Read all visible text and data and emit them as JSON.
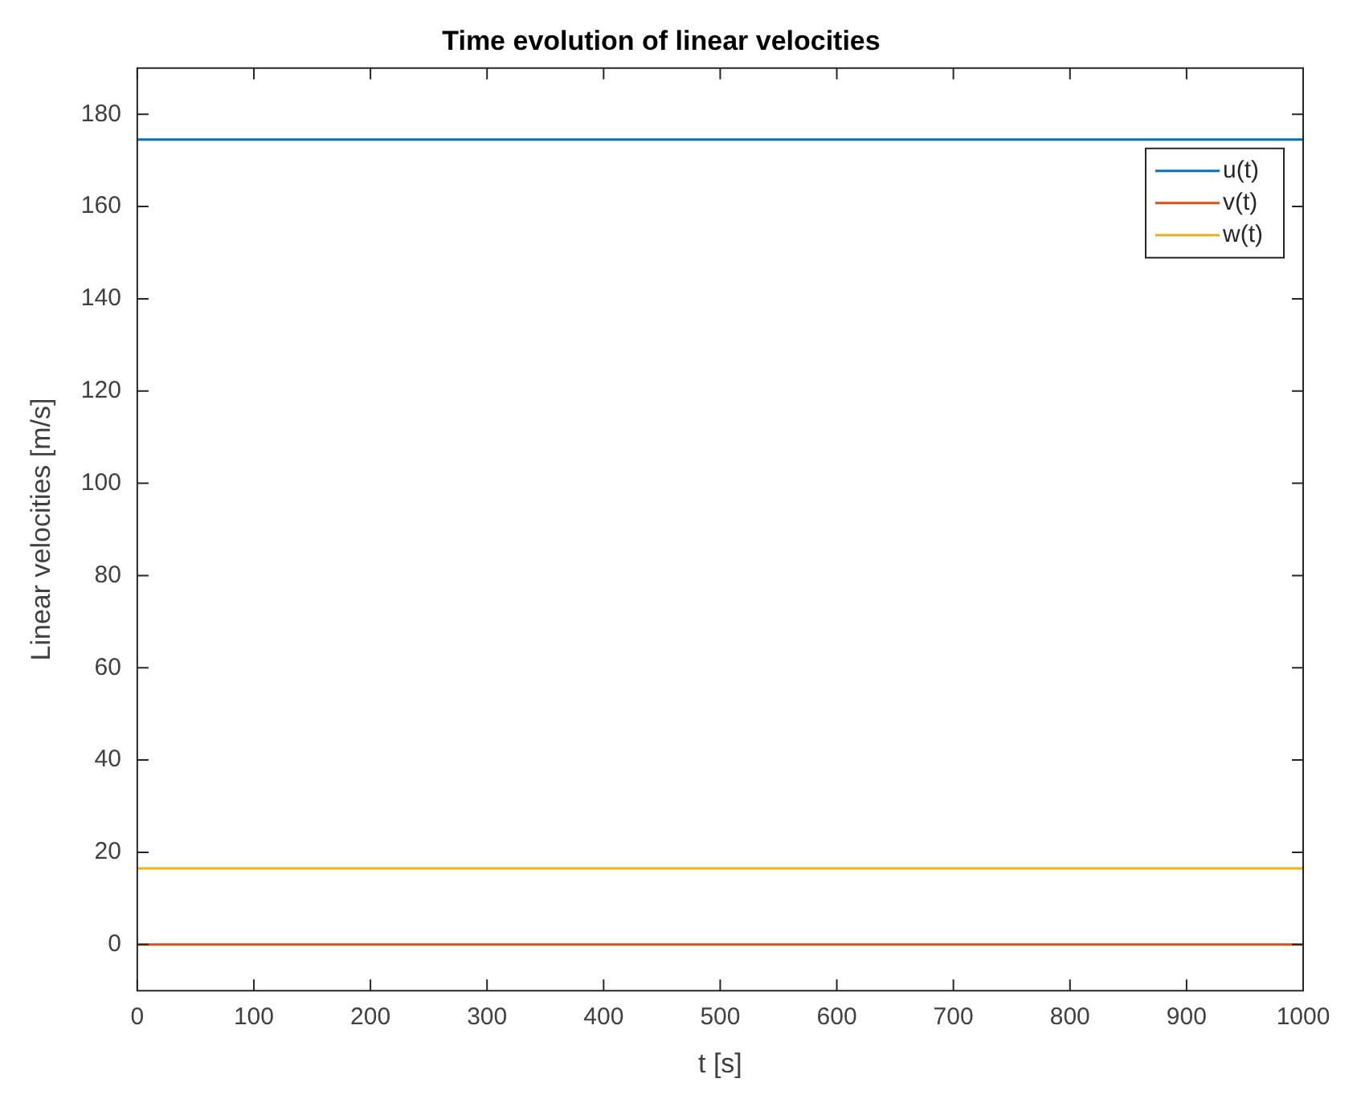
{
  "chart_data": {
    "type": "line",
    "title": "Time evolution of linear velocities",
    "xlabel": "t [s]",
    "ylabel": "Linear velocities [m/s]",
    "x": [
      0,
      1000
    ],
    "series": [
      {
        "name": "u(t)",
        "color": "#0072bd",
        "values": [
          174.5,
          174.5
        ]
      },
      {
        "name": "v(t)",
        "color": "#d95319",
        "values": [
          0,
          0
        ]
      },
      {
        "name": "w(t)",
        "color": "#edb120",
        "values": [
          16.5,
          16.5
        ]
      }
    ],
    "xlim": [
      0,
      1000
    ],
    "xticks": [
      0,
      100,
      200,
      300,
      400,
      500,
      600,
      700,
      800,
      900,
      1000
    ],
    "ylim": [
      -10,
      190
    ],
    "yticks": [
      0,
      20,
      40,
      60,
      80,
      100,
      120,
      140,
      160,
      180
    ],
    "grid": false,
    "legend": "top right",
    "marker": "none",
    "line_style": "solid"
  }
}
